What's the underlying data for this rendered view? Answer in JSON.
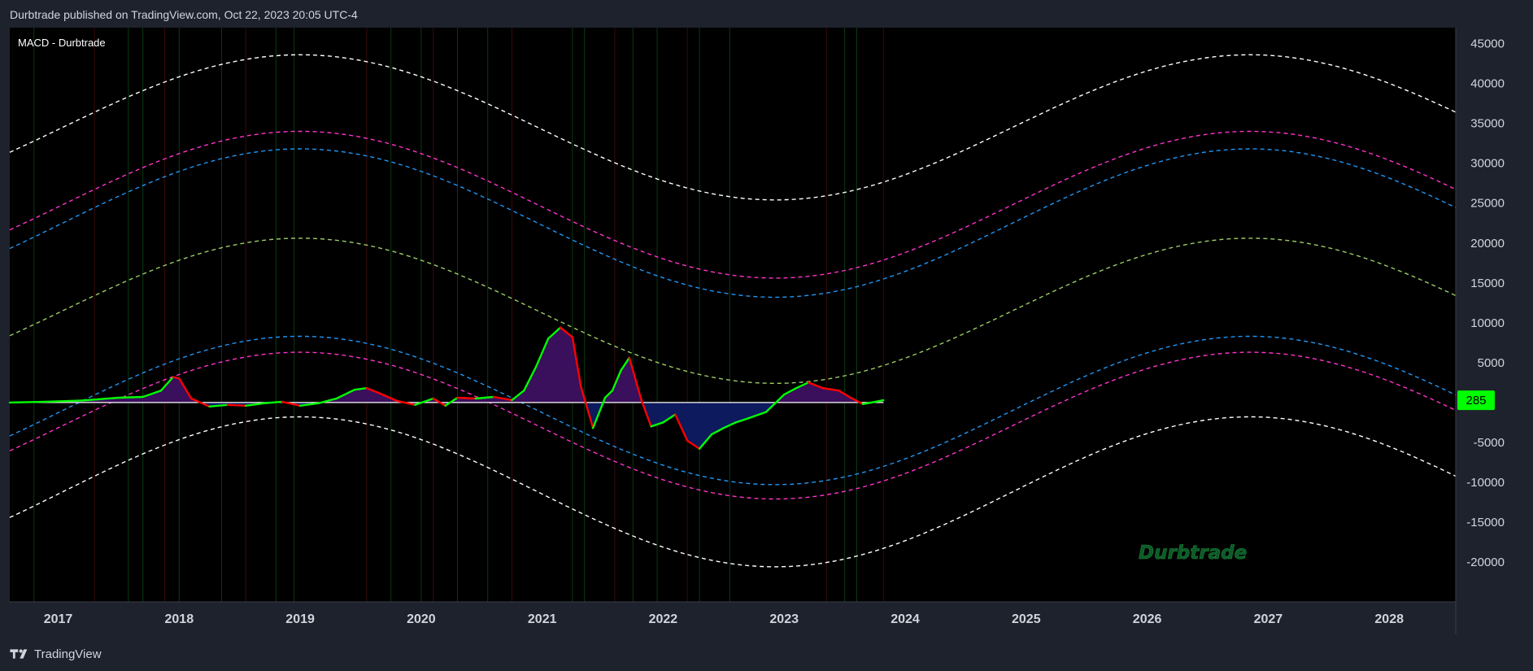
{
  "header": {
    "published": "Durbtrade published on TradingView.com, Oct 22, 2023 20:05 UTC-4"
  },
  "indicator": {
    "title": "MACD - Durbtrade"
  },
  "footer": {
    "brand": "TradingView"
  },
  "watermark": "Durbtrade",
  "price_label": {
    "value": "285",
    "color": "#00ff00"
  },
  "colors": {
    "background": "#000000",
    "chrome": "#1e222d",
    "band_outer": "#ffffff",
    "band_magenta": "#ff33cc",
    "band_blue": "#2196f3",
    "band_green": "#9ccc65",
    "macd_up": "#00ff00",
    "macd_down": "#ff0000",
    "fill_positive": "#3a0f5c",
    "fill_negative": "#0d1a5e",
    "zero_line": "#ffffff"
  },
  "chart_data": {
    "type": "line",
    "title": "MACD - Durbtrade",
    "xlabel": "",
    "ylabel": "",
    "xlim": [
      2016.6,
      2028.55
    ],
    "ylim": [
      -25000,
      47000
    ],
    "x_ticks": [
      "2017",
      "2018",
      "2019",
      "2020",
      "2021",
      "2022",
      "2023",
      "2024",
      "2025",
      "2026",
      "2027",
      "2028"
    ],
    "y_ticks": [
      "45000",
      "40000",
      "35000",
      "30000",
      "25000",
      "20000",
      "15000",
      "10000",
      "5000",
      "-5000",
      "-10000",
      "-15000",
      "-20000"
    ],
    "y_tick_values": [
      45000,
      40000,
      35000,
      30000,
      25000,
      20000,
      15000,
      10000,
      5000,
      -5000,
      -10000,
      -15000,
      -20000
    ],
    "last_value": 285,
    "grid": false,
    "legend": "none",
    "bands": {
      "style": "dashed sinusoids",
      "period_years": 7.85,
      "phase_peak_year": 2019.0,
      "series": [
        {
          "color_key": "band_outer",
          "center": 34500,
          "amplitude": 9100
        },
        {
          "color_key": "band_magenta",
          "center": 24800,
          "amplitude": 9200
        },
        {
          "color_key": "band_blue",
          "center": 22500,
          "amplitude": 9300
        },
        {
          "color_key": "band_green",
          "center": 11500,
          "amplitude": 9100
        },
        {
          "color_key": "band_blue",
          "center": -1000,
          "amplitude": 9300
        },
        {
          "color_key": "band_magenta",
          "center": -2900,
          "amplitude": 9200
        },
        {
          "color_key": "band_outer",
          "center": -11200,
          "amplitude": 9400
        }
      ]
    },
    "series": [
      {
        "x": [
          2016.6,
          2016.9,
          2017.2,
          2017.5,
          2017.7,
          2017.85,
          2017.95,
          2018.0,
          2018.1,
          2018.25,
          2018.4,
          2018.55,
          2018.7,
          2018.85,
          2019.0,
          2019.15,
          2019.3,
          2019.45,
          2019.55,
          2019.65,
          2019.8,
          2019.95,
          2020.1,
          2020.2,
          2020.3,
          2020.45,
          2020.6,
          2020.75,
          2020.85,
          2020.95,
          2021.05,
          2021.15,
          2021.25,
          2021.32,
          2021.42,
          2021.52,
          2021.58,
          2021.65,
          2021.72,
          2021.82,
          2021.9,
          2022.0,
          2022.1,
          2022.2,
          2022.3,
          2022.4,
          2022.5,
          2022.6,
          2022.7,
          2022.85,
          2023.0,
          2023.1,
          2023.2,
          2023.32,
          2023.45,
          2023.55,
          2023.65,
          2023.72,
          2023.82
        ],
        "values": [
          0,
          100,
          250,
          600,
          700,
          1500,
          3200,
          3000,
          500,
          -500,
          -300,
          -400,
          -100,
          100,
          -400,
          -100,
          500,
          1600,
          1800,
          1200,
          200,
          -300,
          500,
          -400,
          600,
          500,
          700,
          300,
          1500,
          4500,
          8000,
          9400,
          8200,
          2000,
          -3200,
          600,
          1500,
          4000,
          5600,
          300,
          -3000,
          -2500,
          -1500,
          -4800,
          -5800,
          -4000,
          -3200,
          -2500,
          -2000,
          -1200,
          1000,
          1800,
          2500,
          1800,
          1500,
          600,
          -200,
          0,
          285
        ]
      }
    ]
  }
}
